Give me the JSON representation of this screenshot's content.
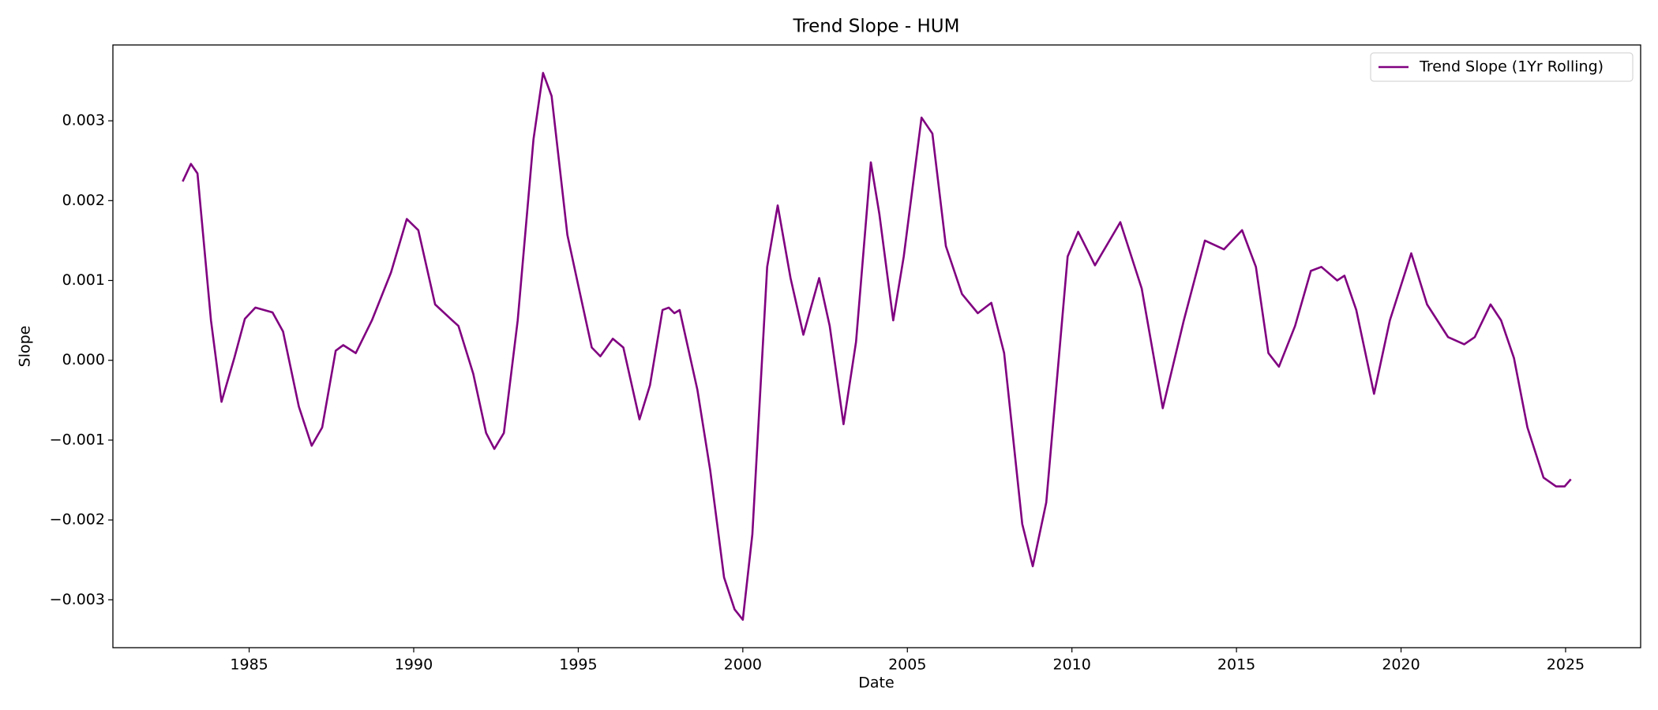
{
  "chart_data": {
    "type": "line",
    "title": "Trend Slope - HUM",
    "xlabel": "Date",
    "ylabel": "Slope",
    "xlim": [
      1980.86,
      2027.28
    ],
    "xticks": [
      1985,
      1990,
      1995,
      2000,
      2005,
      2010,
      2015,
      2020,
      2025
    ],
    "ylim": [
      -0.0036,
      0.00395
    ],
    "yticks": [
      {
        "value": -0.003,
        "label": "−0.003"
      },
      {
        "value": -0.002,
        "label": "−0.002"
      },
      {
        "value": -0.001,
        "label": "−0.001"
      },
      {
        "value": 0,
        "label": "0.000"
      },
      {
        "value": 0.001,
        "label": "0.001"
      },
      {
        "value": 0.002,
        "label": "0.002"
      },
      {
        "value": 0.003,
        "label": "0.003"
      }
    ],
    "legend": "upper right",
    "grid": false,
    "x": [
      1982.98,
      1983.23,
      1983.43,
      1983.84,
      1984.16,
      1984.55,
      1984.87,
      1985.19,
      1985.71,
      1986.03,
      1986.51,
      1986.9,
      1987.22,
      1987.63,
      1987.86,
      1988.24,
      1988.73,
      1989.31,
      1989.79,
      1990.14,
      1990.65,
      1991.17,
      1991.36,
      1991.81,
      1992.2,
      1992.45,
      1992.74,
      1993.16,
      1993.64,
      1993.93,
      1994.19,
      1994.67,
      1995.02,
      1995.41,
      1995.67,
      1996.05,
      1996.37,
      1996.86,
      1997.18,
      1997.56,
      1997.75,
      1997.92,
      1998.08,
      1998.62,
      1999.01,
      1999.43,
      1999.75,
      2000.0,
      2000.29,
      2000.74,
      2001.06,
      2001.45,
      2001.84,
      2002.32,
      2002.64,
      2003.06,
      2003.44,
      2003.89,
      2004.15,
      2004.57,
      2004.89,
      2005.43,
      2005.76,
      2006.17,
      2006.66,
      2007.14,
      2007.55,
      2007.94,
      2008.49,
      2008.81,
      2009.22,
      2009.87,
      2010.19,
      2010.7,
      2011.47,
      2012.12,
      2012.76,
      2013.4,
      2014.04,
      2014.62,
      2015.17,
      2015.59,
      2015.97,
      2016.29,
      2016.78,
      2017.26,
      2017.58,
      2018.06,
      2018.28,
      2018.64,
      2019.18,
      2019.66,
      2020.31,
      2020.79,
      2021.43,
      2021.92,
      2022.24,
      2022.72,
      2023.04,
      2023.43,
      2023.84,
      2024.33,
      2024.71,
      2024.97,
      2025.16
    ],
    "series": [
      {
        "name": "Trend Slope (1Yr Rolling)",
        "color": "#800080",
        "values": [
          0.00224,
          0.00246,
          0.00234,
          0.0005,
          -0.00052,
          3e-05,
          0.00052,
          0.00066,
          0.0006,
          0.00036,
          -0.00058,
          -0.00107,
          -0.00084,
          0.00012,
          0.00019,
          9e-05,
          0.0005,
          0.0011,
          0.00177,
          0.00163,
          0.0007,
          0.0005,
          0.00043,
          -0.00017,
          -0.00091,
          -0.00111,
          -0.00091,
          0.0005,
          0.00277,
          0.0036,
          0.00331,
          0.00157,
          0.0009,
          0.00016,
          5e-05,
          0.00027,
          0.00016,
          -0.00074,
          -0.00031,
          0.00063,
          0.00066,
          0.00059,
          0.00063,
          -0.00037,
          -0.00138,
          -0.00272,
          -0.00312,
          -0.00325,
          -0.00218,
          0.00117,
          0.00194,
          0.00103,
          0.00032,
          0.00103,
          0.00043,
          -0.0008,
          0.00023,
          0.00248,
          0.00183,
          0.0005,
          0.0013,
          0.00304,
          0.00284,
          0.00143,
          0.00083,
          0.00059,
          0.00072,
          9e-05,
          -0.00205,
          -0.00258,
          -0.00178,
          0.0013,
          0.00161,
          0.00119,
          0.00173,
          0.0009,
          -0.0006,
          0.0005,
          0.0015,
          0.00139,
          0.00163,
          0.00117,
          9e-05,
          -8e-05,
          0.00043,
          0.00112,
          0.00117,
          0.001,
          0.00106,
          0.00063,
          -0.00042,
          0.0005,
          0.00134,
          0.0007,
          0.00029,
          0.0002,
          0.00029,
          0.0007,
          0.0005,
          3e-05,
          -0.00084,
          -0.00147,
          -0.00158,
          -0.00158,
          -0.00149
        ]
      }
    ]
  }
}
